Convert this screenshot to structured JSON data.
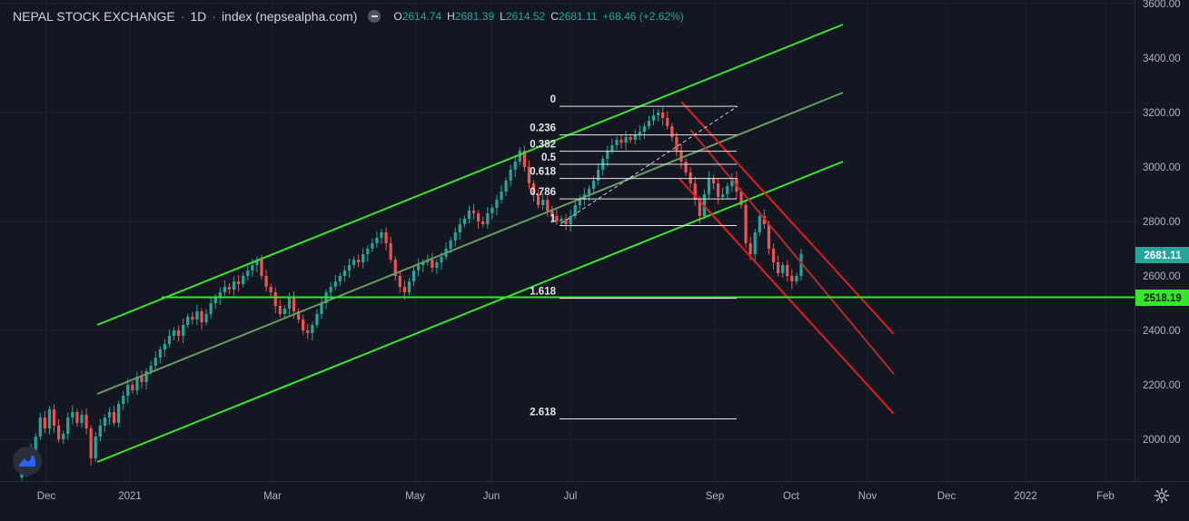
{
  "header": {
    "symbol_name": "NEPAL STOCK EXCHANGE",
    "interval": "1D",
    "source": "index (nepsealpha.com)",
    "ohlc": {
      "o_label": "O",
      "o": "2614.74",
      "h_label": "H",
      "h": "2681.39",
      "l_label": "L",
      "l": "2614.52",
      "c_label": "C",
      "c": "2681.11",
      "change": "+68.46 (+2.62%)"
    }
  },
  "colors": {
    "background": "#131722",
    "up": "#26a69a",
    "down": "#ef5350",
    "channel_green": "#39e52c",
    "channel_mid": "#6b9a63",
    "channel_red": "#e51c1c",
    "support_line": "#39e52c",
    "text": "#d1d4dc",
    "axis_text": "#b2b5be"
  },
  "price_labels": {
    "last_price": "2681.11",
    "support_price": "2518.19"
  },
  "icons": {
    "logo": "tradingview-logo-icon",
    "settings": "gear-icon",
    "collapse": "minus-toggle-icon"
  },
  "chart_data": {
    "type": "candlestick",
    "y_axis": {
      "min": 1850,
      "max": 3600,
      "ticks": [
        "2000.00",
        "2200.00",
        "2400.00",
        "2600.00",
        "2800.00",
        "3000.00",
        "3200.00",
        "3400.00",
        "3600.00"
      ]
    },
    "x_axis": {
      "labels": [
        "Dec",
        "2021",
        "Mar",
        "May",
        "Jun",
        "Jul",
        "Sep",
        "Oct",
        "Nov",
        "Dec",
        "2022",
        "Feb"
      ]
    },
    "fibonacci_levels": [
      {
        "label": "0",
        "price": 3223
      },
      {
        "label": "0.236",
        "price": 3118
      },
      {
        "label": "0.382",
        "price": 3058
      },
      {
        "label": "0.5",
        "price": 3010
      },
      {
        "label": "0.618",
        "price": 2958
      },
      {
        "label": "0.786",
        "price": 2883
      },
      {
        "label": "1",
        "price": 2785
      },
      {
        "label": "1.618",
        "price": 2518
      },
      {
        "label": "2.618",
        "price": 2075
      }
    ],
    "support_level": 2518.19,
    "last_close": 2681.11,
    "series": [
      {
        "values": [
          1880,
          1930,
          1960,
          2010,
          2080,
          2040,
          2110,
          2050,
          2000,
          2020,
          2080,
          2100,
          2060,
          2090,
          2040,
          1930,
          2010,
          2050,
          2080,
          2100,
          2060,
          2130,
          2160,
          2200,
          2180,
          2230,
          2210,
          2250,
          2270,
          2300,
          2330,
          2350,
          2380,
          2400,
          2380,
          2420,
          2450,
          2440,
          2470,
          2430,
          2460,
          2500,
          2520,
          2540,
          2560,
          2550,
          2580,
          2570,
          2600,
          2620,
          2640,
          2660,
          2600,
          2560,
          2540,
          2490,
          2460,
          2480,
          2520,
          2470,
          2440,
          2400,
          2390,
          2420,
          2460,
          2500,
          2540,
          2560,
          2580,
          2600,
          2620,
          2640,
          2660,
          2650,
          2680,
          2700,
          2720,
          2740,
          2760,
          2720,
          2660,
          2600,
          2560,
          2540,
          2580,
          2620,
          2640,
          2650,
          2660,
          2630,
          2650,
          2670,
          2700,
          2730,
          2760,
          2790,
          2810,
          2840,
          2830,
          2800,
          2790,
          2830,
          2850,
          2880,
          2910,
          2950,
          2990,
          3020,
          3060,
          3000,
          2940,
          2900,
          2860,
          2880,
          2840,
          2820,
          2800,
          2810,
          2790,
          2820,
          2860,
          2880,
          2900,
          2920,
          2950,
          2990,
          3030,
          3060,
          3080,
          3100,
          3090,
          3110,
          3100,
          3120,
          3130,
          3150,
          3170,
          3190,
          3200,
          3180,
          3150,
          3110,
          3060,
          3020,
          2980,
          2940,
          2880,
          2820,
          2900,
          2960,
          2940,
          2890,
          2900,
          2930,
          2960,
          2910,
          2860,
          2720,
          2680,
          2760,
          2820,
          2790,
          2700,
          2650,
          2610,
          2640,
          2600,
          2580,
          2600,
          2681
        ]
      }
    ]
  }
}
